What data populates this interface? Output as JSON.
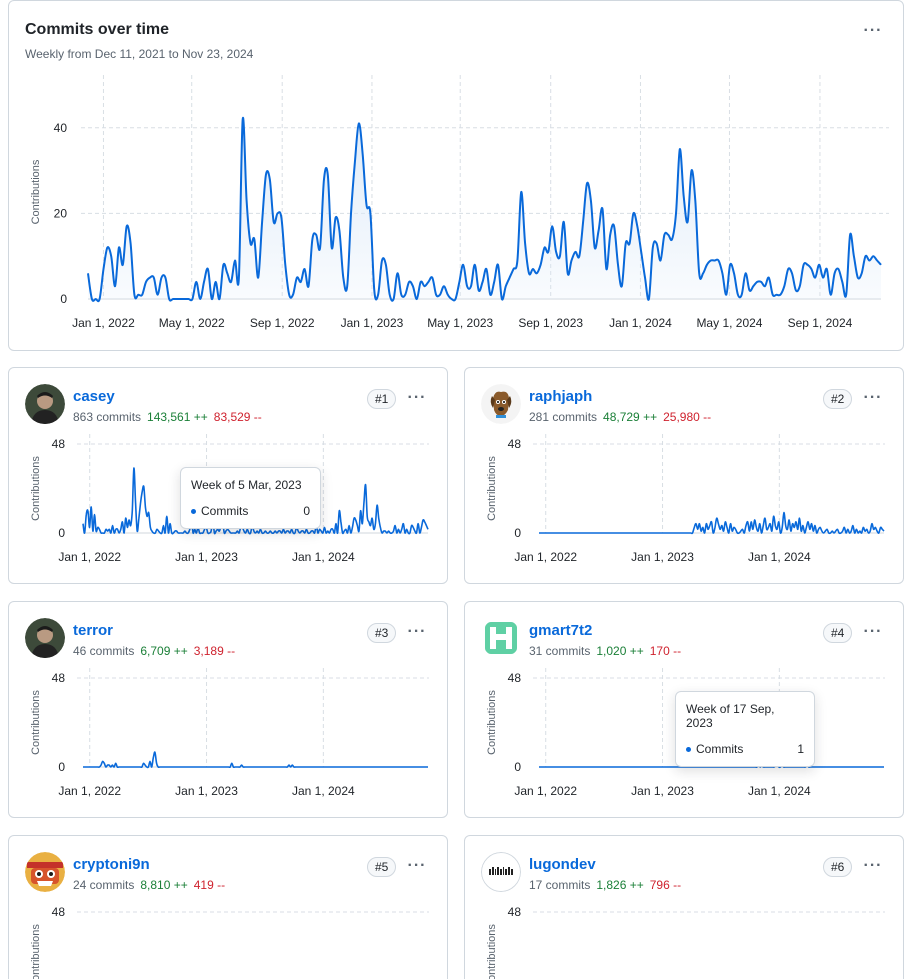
{
  "colors": {
    "accent": "#0969da",
    "area": "#dbe9f8",
    "additions": "#1a7f37",
    "deletions": "#cf222e"
  },
  "main_chart": {
    "title": "Commits over time",
    "subtitle": "Weekly from Dec 11, 2021 to Nov 23, 2024",
    "menu_icon": "kebab-horizontal-icon"
  },
  "contributors": [
    {
      "rank": "#1",
      "name": "casey",
      "commits": "863 commits",
      "additions": "143,561 ++",
      "deletions": "83,529 --",
      "avatar_icon": "avatar-photo-icon"
    },
    {
      "rank": "#2",
      "name": "raphjaph",
      "commits": "281 commits",
      "additions": "48,729 ++",
      "deletions": "25,980 --",
      "avatar_icon": "avatar-dog-icon"
    },
    {
      "rank": "#3",
      "name": "terror",
      "commits": "46 commits",
      "additions": "6,709 ++",
      "deletions": "3,189 --",
      "avatar_icon": "avatar-photo-icon"
    },
    {
      "rank": "#4",
      "name": "gmart7t2",
      "commits": "31 commits",
      "additions": "1,020 ++",
      "deletions": "170 --",
      "avatar_icon": "avatar-identicon-icon"
    },
    {
      "rank": "#5",
      "name": "cryptoni9n",
      "commits": "24 commits",
      "additions": "8,810 ++",
      "deletions": "419 --",
      "avatar_icon": "avatar-mask-icon"
    },
    {
      "rank": "#6",
      "name": "lugondev",
      "commits": "17 commits",
      "additions": "1,826 ++",
      "deletions": "796 --",
      "avatar_icon": "avatar-pixel-icon"
    }
  ],
  "tooltips": {
    "casey": {
      "title": "Week of 5 Mar, 2023",
      "label": "Commits",
      "value": "0"
    },
    "gmart7t2": {
      "title": "Week of 17 Sep, 2023",
      "label": "Commits",
      "value": "1"
    }
  },
  "chart_data": [
    {
      "type": "area",
      "title": "Commits over time",
      "ylabel": "Contributions",
      "ylim": [
        0,
        50
      ],
      "y_ticks": [
        "0",
        "20",
        "40"
      ],
      "x_ticks": [
        "Jan 1, 2022",
        "May 1, 2022",
        "Sep 1, 2022",
        "Jan 1, 2023",
        "May 1, 2023",
        "Sep 1, 2023",
        "Jan 1, 2024",
        "May 1, 2024",
        "Sep 1, 2024"
      ],
      "grid": true,
      "x_start": "2021-12-11",
      "x_end": "2024-11-23",
      "values": [
        6,
        0,
        0,
        0,
        7,
        12,
        10,
        3,
        12,
        8,
        17,
        13,
        1,
        1,
        1,
        4,
        5,
        5,
        1,
        5,
        5,
        0,
        0,
        0,
        0,
        0,
        0,
        0,
        4,
        0,
        4,
        7,
        0,
        4,
        0,
        8,
        6,
        4,
        9,
        5,
        42,
        23,
        13,
        14,
        5,
        18,
        29,
        28,
        18,
        20,
        19,
        8,
        1,
        1,
        5,
        4,
        7,
        3,
        14,
        15,
        12,
        28,
        29,
        12,
        19,
        16,
        5,
        3,
        20,
        32,
        41,
        34,
        22,
        20,
        2,
        1,
        9,
        8,
        1,
        0,
        6,
        1,
        1,
        4,
        3,
        0,
        4,
        3,
        4,
        5,
        1,
        1,
        3,
        1,
        0,
        0,
        4,
        8,
        3,
        3,
        8,
        2,
        4,
        7,
        1,
        4,
        8,
        0,
        3,
        5,
        7,
        9,
        25,
        13,
        6,
        7,
        6,
        8,
        12,
        11,
        17,
        11,
        10,
        18,
        6,
        9,
        11,
        10,
        18,
        27,
        23,
        12,
        16,
        21,
        7,
        15,
        17,
        8,
        3,
        13,
        13,
        20,
        17,
        11,
        5,
        0,
        12,
        13,
        9,
        15,
        15,
        14,
        20,
        35,
        24,
        18,
        30,
        23,
        6,
        6,
        8,
        9,
        9,
        9,
        6,
        1,
        8,
        6,
        1,
        1,
        6,
        2,
        3,
        4,
        4,
        3,
        5,
        1,
        1,
        1,
        3,
        7,
        6,
        2,
        3,
        8,
        8,
        7,
        5,
        8,
        5,
        7,
        1,
        6,
        7,
        4,
        1,
        15,
        10,
        5,
        6,
        10,
        9,
        10,
        9,
        8
      ],
      "fill": true
    },
    {
      "type": "line",
      "title": "casey",
      "ylabel": "Contributions",
      "ylim": [
        0,
        48
      ],
      "y_ticks": [
        "0",
        "48"
      ],
      "x_ticks": [
        "Jan 1, 2022",
        "Jan 1, 2023",
        "Jan 1, 2024"
      ],
      "x_start": "2021-12-11",
      "x_end": "2024-11-23",
      "values": [
        5,
        0,
        10,
        12,
        3,
        14,
        1,
        10,
        1,
        3,
        2,
        0,
        0,
        0,
        2,
        1,
        2,
        0,
        4,
        0,
        2,
        2,
        0,
        2,
        6,
        0,
        8,
        3,
        7,
        4,
        12,
        35,
        16,
        1,
        8,
        16,
        22,
        25,
        14,
        9,
        11,
        3,
        1,
        0,
        0,
        2,
        1,
        0,
        0,
        4,
        0,
        9,
        0,
        5,
        0,
        0,
        1,
        1,
        0,
        0,
        0,
        0,
        1,
        0,
        0,
        2,
        7,
        0,
        2,
        0,
        3,
        0,
        0,
        0,
        2,
        3,
        0,
        0,
        1,
        7,
        0,
        1,
        2,
        1,
        4,
        6,
        0,
        1,
        2,
        1,
        0,
        0,
        0,
        0,
        1,
        0,
        3,
        3,
        1,
        0,
        2,
        0,
        0,
        4,
        1,
        0,
        1,
        0,
        2,
        0,
        0,
        1,
        0,
        0,
        1,
        0,
        0,
        1,
        0,
        1,
        1,
        0,
        2,
        0,
        1,
        1,
        0,
        2,
        0,
        0,
        3,
        1,
        0,
        1,
        1,
        0,
        2,
        0,
        0,
        1,
        1,
        0,
        4,
        0,
        2,
        1,
        0,
        3,
        0,
        1,
        0,
        2,
        2,
        0,
        5,
        0,
        12,
        6,
        0,
        1,
        2,
        0,
        4,
        0,
        3,
        8,
        7,
        4,
        1,
        12,
        5,
        16,
        26,
        9,
        6,
        4,
        8,
        2,
        5,
        15,
        8,
        3,
        0,
        1,
        1,
        0,
        1,
        0,
        0,
        1,
        4,
        0,
        2,
        0,
        2,
        5,
        0,
        2,
        0,
        0,
        4,
        3,
        1,
        0,
        5,
        0,
        3,
        7,
        6,
        4,
        2
      ]
    },
    {
      "type": "line",
      "title": "raphjaph",
      "ylabel": "Contributions",
      "ylim": [
        0,
        48
      ],
      "y_ticks": [
        "0",
        "48"
      ],
      "x_ticks": [
        "Jan 1, 2022",
        "Jan 1, 2023",
        "Jan 1, 2024"
      ],
      "x_start": "2021-12-11",
      "x_end": "2024-11-23",
      "values": [
        0,
        0,
        0,
        0,
        0,
        0,
        0,
        0,
        0,
        0,
        0,
        0,
        0,
        0,
        0,
        0,
        0,
        0,
        0,
        0,
        0,
        0,
        0,
        0,
        0,
        0,
        0,
        0,
        0,
        0,
        0,
        0,
        0,
        0,
        0,
        0,
        0,
        0,
        0,
        0,
        0,
        0,
        0,
        0,
        0,
        0,
        0,
        0,
        0,
        0,
        0,
        0,
        0,
        0,
        0,
        0,
        0,
        0,
        0,
        0,
        0,
        0,
        0,
        0,
        0,
        0,
        0,
        0,
        0,
        0,
        0,
        0,
        0,
        0,
        0,
        0,
        0,
        0,
        0,
        0,
        0,
        0,
        0,
        0,
        0,
        0,
        0,
        0,
        0,
        0,
        3,
        5,
        2,
        5,
        1,
        3,
        0,
        5,
        2,
        4,
        6,
        0,
        3,
        8,
        5,
        2,
        4,
        1,
        6,
        3,
        0,
        5,
        1,
        3,
        2,
        0,
        0,
        1,
        2,
        0,
        4,
        6,
        1,
        6,
        2,
        7,
        3,
        1,
        5,
        0,
        4,
        8,
        2,
        3,
        5,
        1,
        9,
        4,
        2,
        6,
        0,
        3,
        11,
        4,
        2,
        7,
        1,
        5,
        3,
        6,
        2,
        8,
        1,
        4,
        0,
        3,
        6,
        2,
        5,
        1,
        4,
        0,
        2,
        3,
        1,
        0,
        1,
        2,
        0,
        0,
        1,
        0,
        1,
        2,
        0,
        0,
        1,
        3,
        0,
        2,
        0,
        1,
        4,
        0,
        2,
        0,
        1,
        0,
        3,
        1,
        2,
        0,
        1,
        5,
        2,
        3,
        1,
        0,
        3,
        2,
        1
      ]
    },
    {
      "type": "line",
      "title": "terror",
      "ylabel": "Contributions",
      "ylim": [
        0,
        48
      ],
      "y_ticks": [
        "0",
        "48"
      ],
      "x_ticks": [
        "Jan 1, 2022",
        "Jan 1, 2023",
        "Jan 1, 2024"
      ],
      "x_start": "2021-12-11",
      "x_end": "2024-11-23",
      "values": [
        0,
        0,
        0,
        0,
        0,
        0,
        0,
        0,
        0,
        0,
        0,
        1,
        3,
        2,
        0,
        1,
        1,
        0,
        1,
        0,
        2,
        0,
        0,
        0,
        0,
        0,
        0,
        0,
        0,
        0,
        0,
        0,
        0,
        0,
        0,
        0,
        0,
        2,
        1,
        0,
        0,
        3,
        0,
        5,
        8,
        2,
        0,
        0,
        0,
        0,
        0,
        0,
        0,
        0,
        0,
        0,
        0,
        0,
        0,
        0,
        0,
        0,
        0,
        0,
        0,
        0,
        0,
        0,
        0,
        0,
        0,
        0,
        0,
        0,
        0,
        0,
        0,
        0,
        0,
        0,
        0,
        0,
        0,
        0,
        0,
        0,
        0,
        0,
        0,
        0,
        0,
        2,
        0,
        0,
        0,
        0,
        0,
        1,
        0,
        0,
        0,
        0,
        0,
        0,
        0,
        0,
        0,
        0,
        0,
        0,
        0,
        0,
        0,
        0,
        0,
        0,
        0,
        0,
        0,
        0,
        0,
        0,
        0,
        0,
        0,
        0,
        1,
        0,
        1,
        0,
        0,
        0,
        0,
        0,
        0,
        0,
        0,
        0,
        0,
        0,
        0,
        0,
        0,
        0,
        0,
        0,
        0,
        0,
        0,
        0,
        0,
        0,
        0,
        0,
        0,
        0,
        0,
        0,
        0,
        0,
        0,
        0,
        0,
        0,
        0,
        0,
        0,
        0,
        0,
        0,
        0,
        0,
        0,
        0,
        0,
        0,
        0,
        0,
        0,
        0,
        0,
        0,
        0,
        0,
        0,
        0,
        0,
        0,
        0,
        0,
        0,
        0,
        0,
        0,
        0,
        0,
        0,
        0,
        0,
        0,
        0,
        0,
        0,
        0,
        0,
        0,
        0,
        0,
        0,
        0,
        0,
        0
      ]
    },
    {
      "type": "line",
      "title": "gmart7t2",
      "ylabel": "Contributions",
      "ylim": [
        0,
        48
      ],
      "y_ticks": [
        "0",
        "48"
      ],
      "x_ticks": [
        "Jan 1, 2022",
        "Jan 1, 2023",
        "Jan 1, 2024"
      ],
      "x_start": "2021-12-11",
      "x_end": "2024-11-23",
      "values": [
        0,
        0,
        0,
        0,
        0,
        0,
        0,
        0,
        0,
        0,
        0,
        0,
        0,
        0,
        0,
        0,
        0,
        0,
        0,
        0,
        0,
        0,
        0,
        0,
        0,
        0,
        0,
        0,
        0,
        0,
        0,
        0,
        0,
        0,
        0,
        0,
        0,
        0,
        0,
        0,
        0,
        0,
        0,
        0,
        0,
        0,
        0,
        0,
        0,
        0,
        0,
        0,
        0,
        0,
        0,
        0,
        0,
        0,
        0,
        0,
        0,
        0,
        0,
        0,
        0,
        0,
        0,
        0,
        0,
        0,
        0,
        0,
        0,
        0,
        0,
        0,
        0,
        0,
        0,
        0,
        0,
        0,
        0,
        0,
        0,
        0,
        0,
        0,
        0,
        0,
        0,
        0,
        0,
        0,
        0,
        0,
        0,
        0,
        0,
        0,
        0,
        0,
        0,
        0,
        0,
        0,
        0,
        0,
        0,
        0,
        0,
        0,
        0,
        0,
        0,
        0,
        0,
        0,
        0,
        0,
        0,
        0,
        0,
        0,
        0,
        0,
        0,
        0,
        0,
        0,
        0,
        0,
        0,
        0,
        0,
        0,
        0,
        0,
        0,
        0,
        2,
        0,
        1,
        0,
        0,
        0,
        0,
        0,
        0,
        0,
        0,
        1,
        2,
        0,
        0,
        1,
        0,
        0,
        0,
        0,
        0,
        0,
        0,
        0,
        0,
        0,
        0,
        0,
        0,
        0,
        0,
        1,
        0,
        0,
        0,
        0,
        0,
        0,
        0,
        0,
        0,
        0,
        0,
        0,
        0,
        0,
        0,
        0,
        0,
        0,
        0,
        0,
        0,
        0,
        0,
        0,
        0,
        0,
        0,
        0,
        0,
        0,
        0,
        0,
        0,
        0,
        0,
        0,
        0,
        0,
        0,
        0,
        0,
        0,
        0,
        0,
        0,
        0,
        0,
        0,
        0
      ]
    },
    {
      "type": "line",
      "title": "cryptoni9n",
      "ylabel": "Contributions",
      "ylim": [
        0,
        48
      ],
      "y_ticks": [
        "48"
      ],
      "x_ticks": [],
      "values": []
    },
    {
      "type": "line",
      "title": "lugondev",
      "ylabel": "Contributions",
      "ylim": [
        0,
        48
      ],
      "y_ticks": [
        "48"
      ],
      "x_ticks": [],
      "values": []
    }
  ]
}
